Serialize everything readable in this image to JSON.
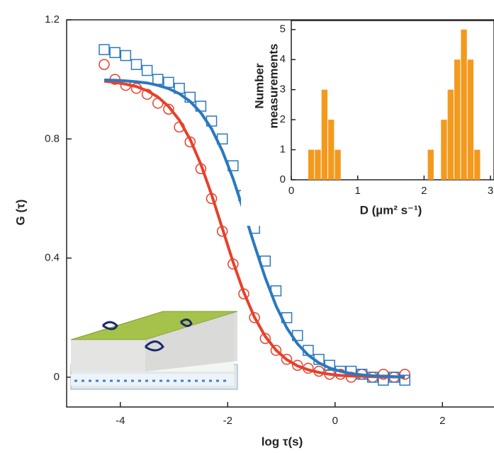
{
  "chart_data": [
    {
      "type": "scatter",
      "xlabel": "log τ(s)",
      "ylabel": "G (τ)",
      "xlim": [
        -5,
        3
      ],
      "ylim": [
        -0.1,
        1.2
      ],
      "xticks": [
        -4,
        -2,
        0,
        2
      ],
      "yticks": [
        0,
        0.4,
        0.8,
        1.2
      ],
      "x": [
        -4.3,
        -4.1,
        -3.9,
        -3.7,
        -3.5,
        -3.3,
        -3.1,
        -2.9,
        -2.7,
        -2.5,
        -2.3,
        -2.1,
        -1.9,
        -1.7,
        -1.5,
        -1.3,
        -1.1,
        -0.9,
        -0.7,
        -0.5,
        -0.3,
        -0.1,
        0.1,
        0.3,
        0.5,
        0.7,
        0.9,
        1.1,
        1.3
      ],
      "series": [
        {
          "color": "#e8402a",
          "marker": "circle",
          "values": [
            1.05,
            1.0,
            0.98,
            0.97,
            0.95,
            0.92,
            0.9,
            0.84,
            0.79,
            0.7,
            0.6,
            0.49,
            0.38,
            0.28,
            0.2,
            0.13,
            0.09,
            0.06,
            0.04,
            0.03,
            0.02,
            0.01,
            0.01,
            0.0,
            0.01,
            0.0,
            0.01,
            0.0,
            0.01
          ]
        },
        {
          "color": "#2a78c0",
          "marker": "square",
          "values": [
            1.1,
            1.09,
            1.08,
            1.05,
            1.03,
            1.0,
            0.99,
            0.97,
            0.94,
            0.91,
            0.86,
            0.8,
            0.71,
            0.61,
            0.5,
            0.39,
            0.29,
            0.2,
            0.14,
            0.09,
            0.06,
            0.04,
            0.02,
            0.02,
            0.01,
            0.0,
            -0.01,
            0.0,
            -0.01
          ]
        },
        {
          "color": "#e8402a",
          "marker": "line",
          "values": [
            0.994,
            0.99,
            0.984,
            0.976,
            0.962,
            0.941,
            0.909,
            0.863,
            0.799,
            0.715,
            0.613,
            0.5,
            0.387,
            0.285,
            0.201,
            0.137,
            0.091,
            0.059,
            0.038,
            0.025,
            0.016,
            0.01,
            0.006,
            0.004,
            0.003,
            0.002,
            0.001,
            0.001,
            0
          ]
        },
        {
          "color": "#2a78c0",
          "marker": "line",
          "values": [
            0.998,
            0.997,
            0.995,
            0.992,
            0.988,
            0.98,
            0.969,
            0.952,
            0.926,
            0.888,
            0.834,
            0.76,
            0.667,
            0.557,
            0.443,
            0.334,
            0.24,
            0.166,
            0.112,
            0.074,
            0.048,
            0.031,
            0.02,
            0.012,
            0.008,
            0.005,
            0.003,
            0.002,
            0.001
          ]
        }
      ]
    },
    {
      "type": "histogram",
      "xlabel": "D (µm² s⁻¹)",
      "ylabel": [
        "Number",
        "measurements"
      ],
      "xlim": [
        0,
        3
      ],
      "ylim": [
        0,
        5.3
      ],
      "xticks": [
        0,
        1,
        2,
        3
      ],
      "yticks": [
        0,
        1,
        2,
        3,
        4,
        5
      ],
      "color": "#f39a1e",
      "bins": [
        0.25,
        0.35,
        0.45,
        0.55,
        0.65,
        0.75,
        0.85,
        0.95,
        1.05,
        1.15,
        1.25,
        1.35,
        1.45,
        1.55,
        1.65,
        1.75,
        1.85,
        1.95,
        2.05,
        2.15,
        2.25,
        2.35,
        2.45,
        2.55,
        2.65,
        2.75,
        2.85
      ],
      "counts": [
        1,
        1,
        3,
        2,
        1,
        0,
        0,
        0,
        0,
        0,
        0,
        0,
        0,
        0,
        0,
        0,
        0,
        0,
        1,
        0,
        2,
        3,
        4,
        5,
        4,
        1
      ]
    }
  ]
}
